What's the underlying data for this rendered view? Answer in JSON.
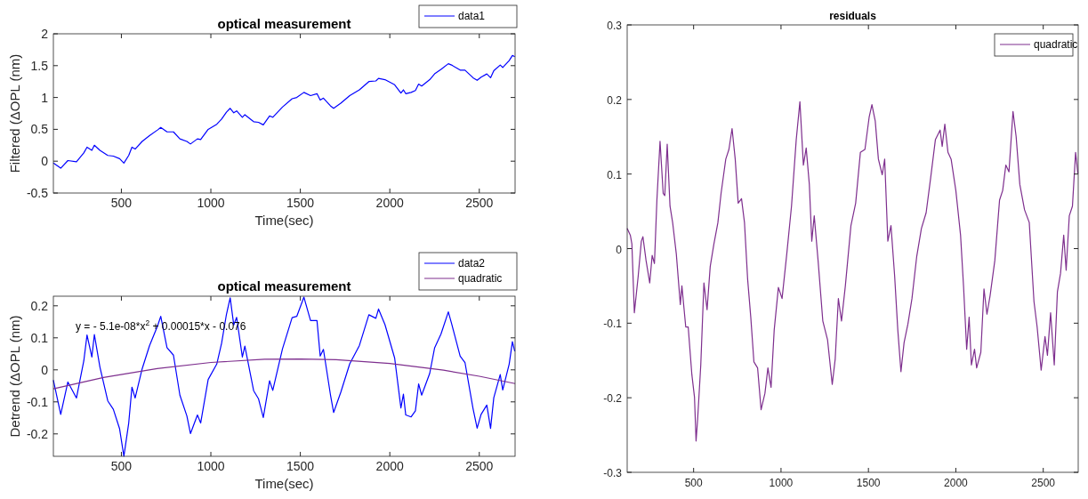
{
  "chart_data": [
    {
      "type": "line",
      "title": "optical measurement",
      "xlabel": "Time(sec)",
      "ylabel": "Filtered  (ΔOPL (nm)",
      "xlim": [
        120,
        2700
      ],
      "ylim": [
        -0.5,
        2
      ],
      "xticks": [
        500,
        1000,
        1500,
        2000,
        2500
      ],
      "yticks": [
        -0.5,
        0,
        0.5,
        1,
        1.5,
        2
      ],
      "legend": "top right",
      "series": [
        {
          "name": "data1",
          "color": "#0000ff",
          "x": [
            120,
            161,
            201,
            249,
            290,
            308,
            335,
            349,
            380,
            424,
            455,
            490,
            514,
            541,
            559,
            577,
            616,
            657,
            702,
            720,
            755,
            791,
            827,
            866,
            886,
            925,
            943,
            985,
            1033,
            1060,
            1087,
            1108,
            1128,
            1144,
            1176,
            1190,
            1239,
            1266,
            1293,
            1328,
            1346,
            1400,
            1454,
            1480,
            1520,
            1557,
            1593,
            1611,
            1629,
            1668,
            1686,
            1726,
            1776,
            1830,
            1883,
            1922,
            1937,
            1973,
            2027,
            2062,
            2076,
            2089,
            2119,
            2143,
            2161,
            2178,
            2223,
            2250,
            2286,
            2327,
            2345,
            2393,
            2420,
            2465,
            2488,
            2510,
            2542,
            2563,
            2581,
            2617,
            2631,
            2667,
            2685,
            2698
          ],
          "values": [
            -0.03,
            -0.11,
            0.01,
            -0.01,
            0.13,
            0.22,
            0.17,
            0.25,
            0.17,
            0.09,
            0.08,
            0.04,
            -0.03,
            0.09,
            0.22,
            0.19,
            0.31,
            0.4,
            0.49,
            0.53,
            0.46,
            0.46,
            0.35,
            0.31,
            0.27,
            0.35,
            0.34,
            0.5,
            0.58,
            0.66,
            0.77,
            0.83,
            0.76,
            0.79,
            0.69,
            0.73,
            0.62,
            0.61,
            0.57,
            0.71,
            0.69,
            0.85,
            0.98,
            1,
            1.08,
            1.03,
            1.06,
            0.96,
            0.99,
            0.87,
            0.83,
            0.91,
            1.03,
            1.12,
            1.25,
            1.26,
            1.3,
            1.28,
            1.2,
            1.07,
            1.12,
            1.06,
            1.08,
            1.11,
            1.21,
            1.18,
            1.28,
            1.37,
            1.44,
            1.53,
            1.51,
            1.43,
            1.43,
            1.31,
            1.27,
            1.32,
            1.37,
            1.31,
            1.42,
            1.51,
            1.47,
            1.58,
            1.66,
            1.64
          ]
        }
      ]
    },
    {
      "type": "line",
      "title": "optical measurement",
      "xlabel": "Time(sec)",
      "ylabel": "Detrend  (ΔOPL (nm)",
      "xlim": [
        120,
        2700
      ],
      "ylim": [
        -0.27,
        0.23
      ],
      "xticks": [
        500,
        1000,
        1500,
        2000,
        2500
      ],
      "yticks": [
        -0.2,
        -0.1,
        0,
        0.1,
        0.2
      ],
      "legend": "top right",
      "annotations": [
        "y = - 5.1e-08*x$^{2}$ + 0.00015*x - 0.076"
      ],
      "series": [
        {
          "name": "data2",
          "color": "#0000ff",
          "x": [
            120,
            161,
            201,
            249,
            290,
            308,
            335,
            349,
            380,
            424,
            455,
            490,
            514,
            541,
            559,
            577,
            616,
            657,
            702,
            720,
            755,
            791,
            827,
            866,
            886,
            925,
            943,
            985,
            1033,
            1060,
            1087,
            1108,
            1128,
            1144,
            1176,
            1190,
            1239,
            1266,
            1293,
            1328,
            1346,
            1400,
            1454,
            1480,
            1520,
            1557,
            1593,
            1611,
            1629,
            1668,
            1686,
            1726,
            1776,
            1830,
            1883,
            1922,
            1937,
            1973,
            2027,
            2062,
            2076,
            2089,
            2119,
            2143,
            2161,
            2178,
            2223,
            2250,
            2286,
            2327,
            2345,
            2393,
            2420,
            2465,
            2488,
            2510,
            2542,
            2563,
            2581,
            2617,
            2631,
            2667,
            2685,
            2698
          ],
          "values": [
            -0.032,
            -0.139,
            -0.038,
            -0.088,
            0.028,
            0.109,
            0.04,
            0.11,
            0.009,
            -0.097,
            -0.123,
            -0.184,
            -0.27,
            -0.166,
            -0.054,
            -0.088,
            0.003,
            0.075,
            0.137,
            0.167,
            0.069,
            0.046,
            -0.079,
            -0.144,
            -0.199,
            -0.141,
            -0.166,
            -0.03,
            0.018,
            0.083,
            0.173,
            0.225,
            0.14,
            0.164,
            0.04,
            0.074,
            -0.065,
            -0.09,
            -0.149,
            -0.034,
            -0.064,
            0.065,
            0.163,
            0.167,
            0.227,
            0.154,
            0.154,
            0.043,
            0.064,
            -0.077,
            -0.133,
            -0.07,
            0.019,
            0.076,
            0.172,
            0.161,
            0.19,
            0.141,
            0.037,
            -0.119,
            -0.076,
            -0.141,
            -0.147,
            -0.128,
            -0.044,
            -0.079,
            -0.011,
            0.068,
            0.112,
            0.181,
            0.145,
            0.043,
            0.023,
            -0.121,
            -0.182,
            -0.139,
            -0.11,
            -0.183,
            -0.087,
            -0.015,
            -0.063,
            0.018,
            0.088,
            0.058
          ]
        },
        {
          "name": "quadratic",
          "color": "#7e2f8e",
          "x": [
            120,
            400,
            700,
            1000,
            1300,
            1500,
            1700,
            2000,
            2300,
            2500,
            2700
          ],
          "values": [
            -0.059,
            -0.024,
            0.004,
            0.023,
            0.033,
            0.034,
            0.032,
            0.02,
            -0.001,
            -0.02,
            -0.043
          ]
        }
      ]
    },
    {
      "type": "line",
      "title": "residuals",
      "xlim": [
        120,
        2700
      ],
      "ylim": [
        -0.3,
        0.3
      ],
      "xticks": [
        500,
        1000,
        1500,
        2000,
        2500
      ],
      "yticks": [
        -0.3,
        -0.2,
        -0.1,
        0,
        0.1,
        0.2,
        0.3
      ],
      "legend": "top right",
      "series": [
        {
          "name": "quadratic",
          "color": "#7e2f8e",
          "x": [
            120,
            138,
            147,
            161,
            183,
            201,
            210,
            228,
            249,
            263,
            276,
            290,
            308,
            326,
            335,
            349,
            365,
            380,
            401,
            424,
            433,
            455,
            469,
            490,
            505,
            514,
            523,
            541,
            559,
            577,
            595,
            616,
            639,
            657,
            684,
            702,
            720,
            738,
            755,
            774,
            791,
            809,
            827,
            845,
            866,
            886,
            908,
            925,
            943,
            961,
            985,
            1006,
            1033,
            1060,
            1087,
            1108,
            1128,
            1144,
            1162,
            1176,
            1190,
            1212,
            1239,
            1266,
            1293,
            1310,
            1328,
            1346,
            1368,
            1400,
            1427,
            1454,
            1480,
            1504,
            1520,
            1539,
            1557,
            1579,
            1593,
            1611,
            1629,
            1650,
            1668,
            1686,
            1704,
            1726,
            1749,
            1776,
            1803,
            1830,
            1856,
            1883,
            1910,
            1922,
            1937,
            1955,
            1973,
            2000,
            2027,
            2044,
            2062,
            2076,
            2089,
            2107,
            2119,
            2143,
            2161,
            2178,
            2196,
            2223,
            2250,
            2268,
            2286,
            2304,
            2327,
            2345,
            2366,
            2393,
            2420,
            2447,
            2465,
            2488,
            2510,
            2524,
            2542,
            2563,
            2581,
            2599,
            2617,
            2631,
            2649,
            2667,
            2685,
            2698
          ],
          "values": [
            0.027,
            0.018,
            0.006,
            -0.086,
            -0.037,
            0.01,
            0.016,
            -0.016,
            -0.046,
            -0.009,
            -0.02,
            0.065,
            0.144,
            0.074,
            0.071,
            0.14,
            0.057,
            0.035,
            -0.007,
            -0.075,
            -0.05,
            -0.105,
            -0.105,
            -0.169,
            -0.199,
            -0.258,
            -0.229,
            -0.156,
            -0.046,
            -0.082,
            -0.024,
            0.006,
            0.035,
            0.074,
            0.12,
            0.133,
            0.161,
            0.12,
            0.061,
            0.067,
            0.035,
            -0.041,
            -0.092,
            -0.152,
            -0.16,
            -0.216,
            -0.194,
            -0.16,
            -0.186,
            -0.109,
            -0.052,
            -0.067,
            -0.007,
            0.057,
            0.146,
            0.197,
            0.112,
            0.135,
            0.086,
            0.01,
            0.044,
            -0.016,
            -0.097,
            -0.122,
            -0.182,
            -0.148,
            -0.067,
            -0.097,
            -0.05,
            0.031,
            0.061,
            0.129,
            0.133,
            0.176,
            0.193,
            0.171,
            0.12,
            0.099,
            0.12,
            0.01,
            0.031,
            -0.037,
            -0.109,
            -0.165,
            -0.126,
            -0.101,
            -0.067,
            -0.011,
            0.027,
            0.048,
            0.095,
            0.146,
            0.159,
            0.137,
            0.167,
            0.129,
            0.12,
            0.078,
            0.018,
            -0.05,
            -0.135,
            -0.092,
            -0.156,
            -0.135,
            -0.16,
            -0.139,
            -0.054,
            -0.088,
            -0.063,
            -0.016,
            0.065,
            0.078,
            0.112,
            0.103,
            0.184,
            0.15,
            0.086,
            0.052,
            0.035,
            -0.071,
            -0.105,
            -0.163,
            -0.118,
            -0.143,
            -0.086,
            -0.156,
            -0.058,
            -0.033,
            0.018,
            -0.029,
            0.044,
            0.057,
            0.129,
            0.101
          ]
        }
      ]
    }
  ]
}
